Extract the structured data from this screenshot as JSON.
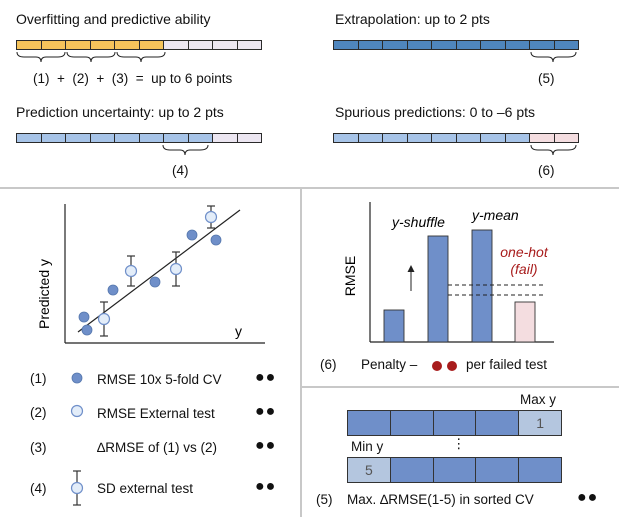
{
  "colors": {
    "orange": "#f6c45b",
    "lavender": "#ece6f1",
    "blue_dark": "#4f86be",
    "blue_light": "#a7c4e8",
    "pink": "#f4dde0",
    "cv_blue": "#6f8fc9",
    "cv_light": "#b4c6df",
    "red": "#a81c1c",
    "divider": "#c8c8c8"
  },
  "top": {
    "overfitting": {
      "title": "Overfitting and predictive ability",
      "formula": "(1)  +  (2)  +  (3)  =  up to 6 points"
    },
    "extrapolation": {
      "title": "Extrapolation: up to 2 pts",
      "label": "(5)"
    },
    "uncertainty": {
      "title": "Prediction uncertainty: up to 2 pts",
      "label": "(4)"
    },
    "spurious": {
      "title": "Spurious predictions: 0 to –6 pts",
      "label": "(6)"
    }
  },
  "scatter": {
    "xlabel": "y",
    "ylabel": "Predicted y"
  },
  "legend": [
    {
      "num": "(1)",
      "text": "RMSE 10x 5-fold CV",
      "icon": "dark-circle-icon",
      "points": "●●"
    },
    {
      "num": "(2)",
      "text": "RMSE External test",
      "icon": "light-circle-icon",
      "points": "●●"
    },
    {
      "num": "(3)",
      "text": "∆RMSE of (1) vs (2)",
      "icon": "",
      "points": "●●"
    },
    {
      "num": "(4)",
      "text": "SD external test",
      "icon": "errorbar-circle-icon",
      "points": "●●"
    }
  ],
  "bar_panel": {
    "ylabel": "RMSE",
    "labels": {
      "y_shuffle": "y-shuffle",
      "y_mean": "y-mean",
      "one_hot": "one-hot",
      "fail": "(fail)"
    },
    "note_num": "(6)",
    "note_text": "Penalty –",
    "note_suffix": "per failed test"
  },
  "cv_panel": {
    "max_label": "Max y",
    "min_label": "Min y",
    "max_fold": "1",
    "min_fold": "5",
    "ellipsis": "⋮",
    "caption_num": "(5)",
    "caption_text": "Max. ∆RMSE(1-5) in sorted CV",
    "points": "●●"
  }
}
